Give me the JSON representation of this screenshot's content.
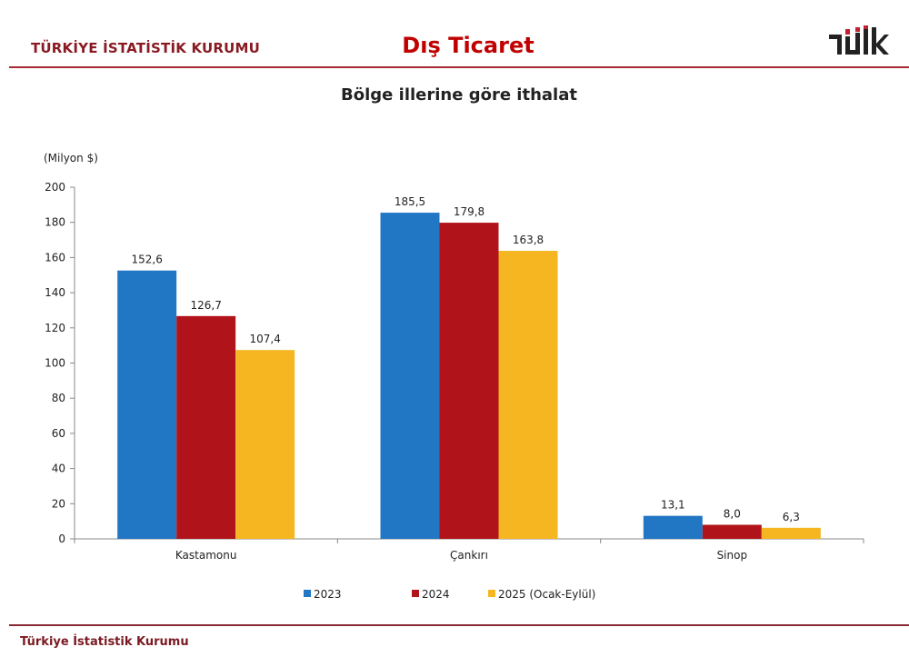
{
  "header": {
    "organization": "TÜRKİYE İSTATİSTİK KURUMU",
    "title": "Dış Ticaret",
    "logo_text": "TÜİK"
  },
  "footer": {
    "organization": "Türkiye İstatistik Kurumu"
  },
  "chart_data": {
    "type": "bar",
    "title": "Bölge illerine göre ithalat",
    "ylabel": "(Milyon $)",
    "xlabel": "",
    "ylim": [
      0,
      200
    ],
    "yticks": [
      0,
      20,
      40,
      60,
      80,
      100,
      120,
      140,
      160,
      180,
      200
    ],
    "categories": [
      "Kastamonu",
      "Çankırı",
      "Sinop"
    ],
    "series": [
      {
        "name": "2023",
        "color": "#2277c4",
        "values": [
          152.6,
          185.5,
          13.1
        ],
        "labels": [
          "152,6",
          "185,5",
          "13,1"
        ]
      },
      {
        "name": "2024",
        "color": "#b0141a",
        "values": [
          126.7,
          179.8,
          8.0
        ],
        "labels": [
          "126,7",
          "179,8",
          "8,0"
        ]
      },
      {
        "name": "2025 (Ocak-Eylül)",
        "color": "#f5b622",
        "values": [
          107.4,
          163.8,
          6.3
        ],
        "labels": [
          "107,4",
          "163,8",
          "6,3"
        ]
      }
    ],
    "legend_position": "bottom",
    "grid": false
  }
}
